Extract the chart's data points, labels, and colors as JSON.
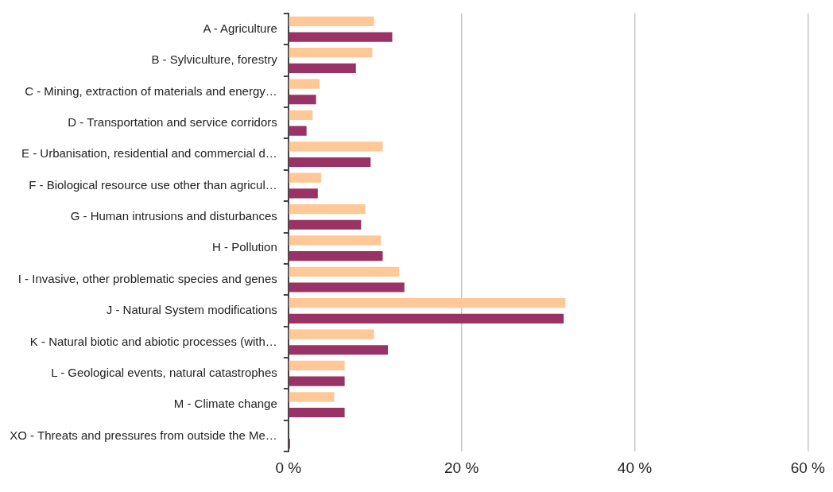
{
  "chart_data": {
    "type": "bar",
    "orientation": "horizontal",
    "categories": [
      "A - Agriculture",
      "B - Sylviculture, forestry",
      "C - Mining, extraction of materials and energy…",
      "D - Transportation and service corridors",
      "E - Urbanisation, residential and commercial d…",
      "F - Biological resource use other than agricul…",
      "G - Human intrusions and disturbances",
      "H - Pollution",
      "I - Invasive, other problematic species and genes",
      "J - Natural System modifications",
      "K - Natural biotic and abiotic processes (with…",
      "L - Geological events, natural catastrophes",
      "M - Climate change",
      "XO - Threats and pressures from outside the Me…"
    ],
    "series": [
      {
        "color": "#ffc896",
        "values": [
          9.9,
          9.7,
          3.6,
          2.8,
          10.9,
          3.8,
          8.9,
          10.7,
          12.8,
          32.0,
          9.9,
          6.5,
          5.3,
          0
        ]
      },
      {
        "color": "#993366",
        "values": [
          12.0,
          7.8,
          3.2,
          2.1,
          9.5,
          3.4,
          8.4,
          10.9,
          13.4,
          31.8,
          11.5,
          6.5,
          6.5,
          0.2
        ]
      }
    ],
    "xlim": [
      0,
      60
    ],
    "xticks": [
      {
        "value": 0,
        "label": "0 %"
      },
      {
        "value": 20,
        "label": "20 %"
      },
      {
        "value": 40,
        "label": "40 %"
      },
      {
        "value": 60,
        "label": "60 %"
      }
    ],
    "grid": "x",
    "legend": false
  }
}
